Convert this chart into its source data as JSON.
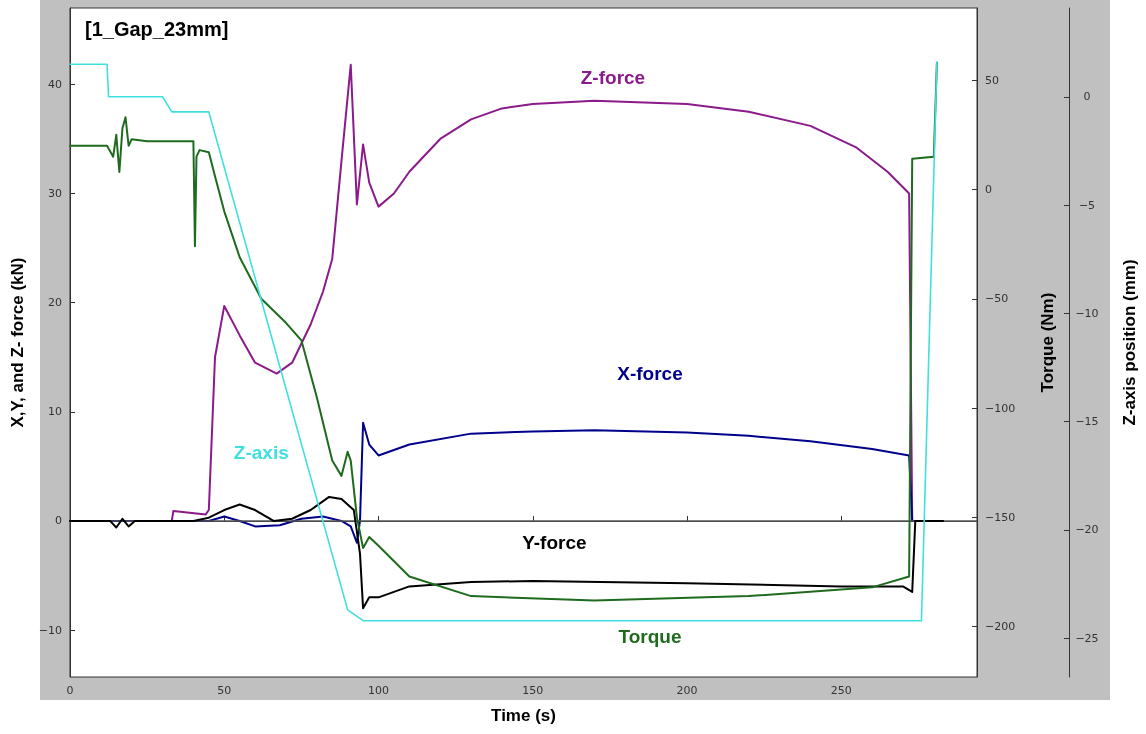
{
  "chart_data": {
    "type": "line",
    "title": "[1_Gap_23mm]",
    "xlabel": "Time (s)",
    "ylabel": "X,Y, and Z- force (kN)",
    "y2label": "Torque (Nm)",
    "y3label": "Z-axis position (mm)",
    "xlim": [
      0,
      294
    ],
    "xticks": [
      0,
      50,
      100,
      150,
      200,
      250
    ],
    "ylim": [
      -14.3,
      47
    ],
    "yticks": [
      -10,
      0,
      10,
      20,
      30,
      40
    ],
    "y2lim": [
      -223,
      83
    ],
    "y2ticks": [
      -200,
      -150,
      -100,
      -50,
      0,
      50
    ],
    "y3lim": [
      -26.8,
      4.1
    ],
    "y3ticks": [
      -25,
      -20,
      -15,
      -10,
      -5,
      0
    ],
    "grid": false,
    "legend": false,
    "marker": "none",
    "line_style": "solid",
    "ref_lines": [
      {
        "axis": "y",
        "value": 0,
        "color": "#555555"
      }
    ],
    "series": [
      {
        "name": "Z-force",
        "color": "#8b1a8b",
        "x": [
          0,
          33,
          33.5,
          44,
          45,
          47,
          50,
          55,
          60,
          67,
          72,
          78,
          82,
          85,
          88,
          91,
          93,
          95,
          97,
          100,
          105,
          110,
          120,
          130,
          140,
          150,
          170,
          200,
          220,
          240,
          255,
          265,
          272,
          273,
          275
        ],
        "values": [
          0,
          0,
          0.9,
          0.6,
          1,
          15,
          19.7,
          17,
          14.5,
          13.5,
          14.5,
          18,
          21,
          24,
          33,
          41.8,
          29,
          34.5,
          31,
          28.8,
          30,
          32,
          35,
          36.8,
          37.8,
          38.2,
          38.5,
          38.2,
          37.5,
          36.2,
          34.2,
          32,
          30,
          0,
          0
        ]
      },
      {
        "name": "X-force",
        "color": "#00008b",
        "x": [
          0,
          40,
          45,
          50,
          55,
          60,
          68,
          75,
          82,
          88,
          91,
          93,
          94,
          95,
          97,
          100,
          110,
          130,
          150,
          170,
          200,
          220,
          240,
          260,
          272,
          273,
          276
        ],
        "values": [
          0,
          0,
          0,
          0.4,
          0,
          -0.5,
          -0.4,
          0.2,
          0.4,
          0,
          -0.5,
          -2,
          0,
          9,
          7,
          6,
          7,
          8,
          8.2,
          8.3,
          8.1,
          7.8,
          7.3,
          6.6,
          6,
          0,
          0
        ]
      },
      {
        "name": "Y-force",
        "color": "#000000",
        "x": [
          0,
          13,
          15,
          17,
          19,
          21,
          40,
          45,
          50,
          55,
          60,
          66,
          72,
          78,
          84,
          88,
          92,
          94,
          95,
          97,
          100,
          110,
          130,
          150,
          200,
          250,
          270,
          273,
          274,
          283
        ],
        "values": [
          0,
          0,
          -0.6,
          0.2,
          -0.5,
          0,
          0,
          0.3,
          1,
          1.5,
          1,
          0,
          0.2,
          1,
          2.2,
          2,
          1,
          -3,
          -8,
          -7,
          -7,
          -6,
          -5.6,
          -5.5,
          -5.7,
          -6,
          -6,
          -6.5,
          0,
          0
        ]
      },
      {
        "name": "Torque",
        "color": "#1e6b1e",
        "axis": "y2",
        "x": [
          0,
          12,
          14,
          15,
          16,
          17,
          18,
          19,
          20,
          25,
          40,
          40.5,
          41,
          42,
          45,
          47,
          50,
          55,
          62,
          70,
          75,
          80,
          85,
          88,
          90,
          91,
          93,
          95,
          97,
          100,
          110,
          130,
          170,
          220,
          260,
          272,
          273,
          280,
          281
        ],
        "values": [
          20,
          20,
          15,
          25,
          8,
          28,
          33,
          20,
          23,
          22,
          22,
          -26,
          15,
          18,
          17,
          6,
          -10,
          -31,
          -50,
          -61,
          -69,
          -95,
          -124,
          -131,
          -120,
          -124,
          -150,
          -164,
          -159,
          -163,
          -177,
          -186,
          -188,
          -186,
          -182,
          -177,
          14,
          15,
          58
        ]
      },
      {
        "name": "Z-axis",
        "color": "#40e0e0",
        "axis": "y3",
        "x": [
          0,
          12,
          12.5,
          30,
          33,
          45,
          90,
          95,
          276,
          281
        ],
        "values": [
          1.5,
          1.5,
          0,
          0,
          -0.7,
          -0.7,
          -23.7,
          -24.2,
          -24.2,
          1.6
        ]
      }
    ]
  }
}
